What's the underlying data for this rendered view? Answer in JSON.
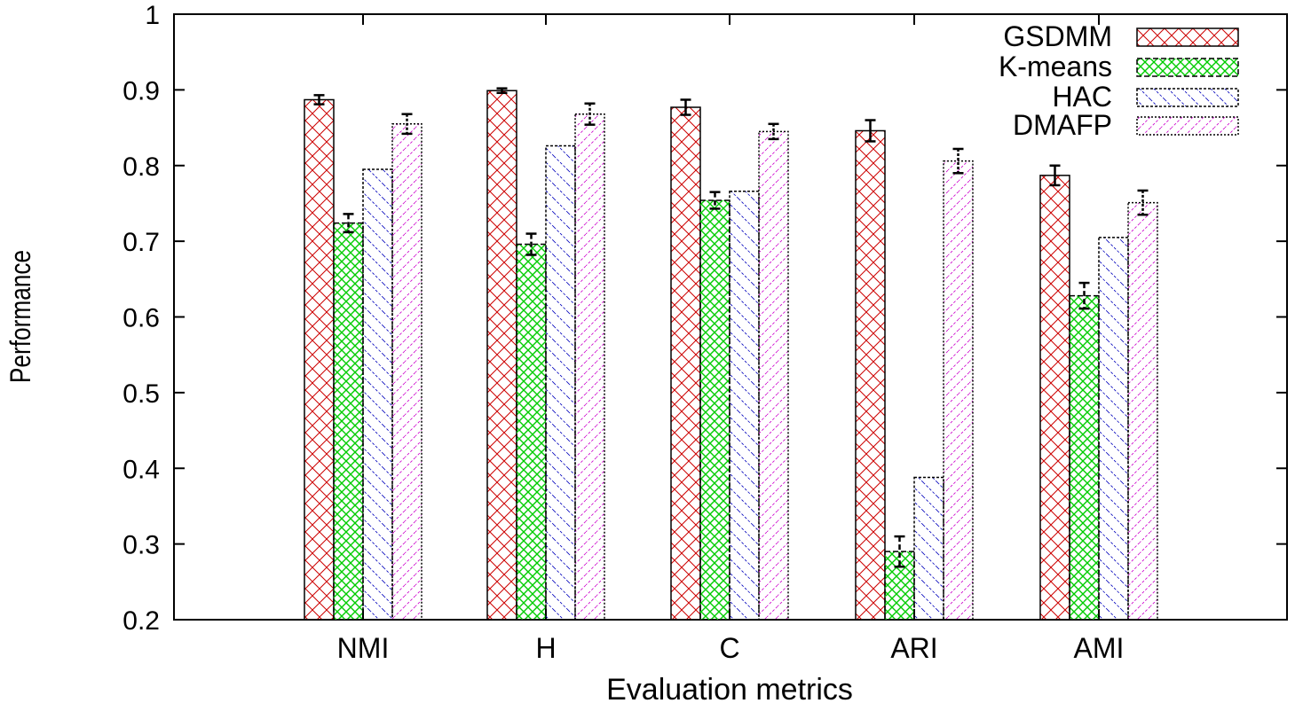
{
  "chart_data": {
    "type": "bar",
    "title": "",
    "xlabel": "Evaluation metrics",
    "ylabel": "Performance",
    "ylim": [
      0.2,
      1.0
    ],
    "yticks": [
      "0.2",
      "0.3",
      "0.4",
      "0.5",
      "0.6",
      "0.7",
      "0.8",
      "0.9",
      "1"
    ],
    "grid": false,
    "legend_position": "top-right",
    "categories": [
      "NMI",
      "H",
      "C",
      "ARI",
      "AMI"
    ],
    "series": [
      {
        "name": "GSDMM",
        "color": "#cc0000",
        "pattern": "crosshatch",
        "values": [
          0.887,
          0.899,
          0.877,
          0.846,
          0.787
        ],
        "errors": [
          0.006,
          0.003,
          0.01,
          0.014,
          0.013
        ]
      },
      {
        "name": "K-means",
        "color": "#00cc00",
        "pattern": "diamond",
        "values": [
          0.724,
          0.696,
          0.754,
          0.29,
          0.628
        ],
        "errors": [
          0.012,
          0.014,
          0.011,
          0.02,
          0.017
        ]
      },
      {
        "name": "HAC",
        "color": "#0000bb",
        "pattern": "diagonal",
        "values": [
          0.795,
          0.826,
          0.766,
          0.388,
          0.705
        ],
        "errors": [
          0.0,
          0.0,
          0.0,
          0.0,
          0.0
        ]
      },
      {
        "name": "DMAFP",
        "color": "#cc00cc",
        "pattern": "diagonal-dense",
        "values": [
          0.855,
          0.868,
          0.845,
          0.806,
          0.751
        ],
        "errors": [
          0.013,
          0.014,
          0.01,
          0.016,
          0.016
        ]
      }
    ]
  }
}
